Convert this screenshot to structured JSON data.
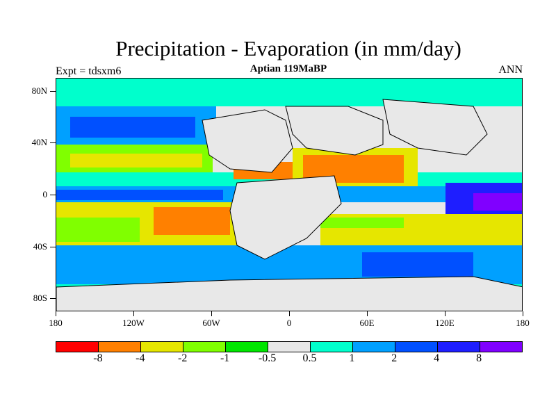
{
  "title": "Precipitation - Evaporation (in mm/day)",
  "subtitle": "Aptian   119MaBP",
  "left_label": "Expt = tdsxm6",
  "right_label": "ANN",
  "lat_ticks": [
    "80N",
    "40N",
    "0",
    "40S",
    "80S"
  ],
  "lon_ticks": [
    "180",
    "120W",
    "60W",
    "0",
    "60E",
    "120E",
    "180"
  ],
  "colorbar": {
    "colors": [
      "#ff0000",
      "#ff8000",
      "#e6e600",
      "#80ff00",
      "#00e600",
      "#e8e8e8",
      "#00ffcc",
      "#00a0ff",
      "#0050ff",
      "#1e1eff",
      "#8000ff"
    ],
    "labels": [
      "-8",
      "-4",
      "-2",
      "-1",
      "-0.5",
      "0.5",
      "1",
      "2",
      "4",
      "8"
    ]
  }
}
